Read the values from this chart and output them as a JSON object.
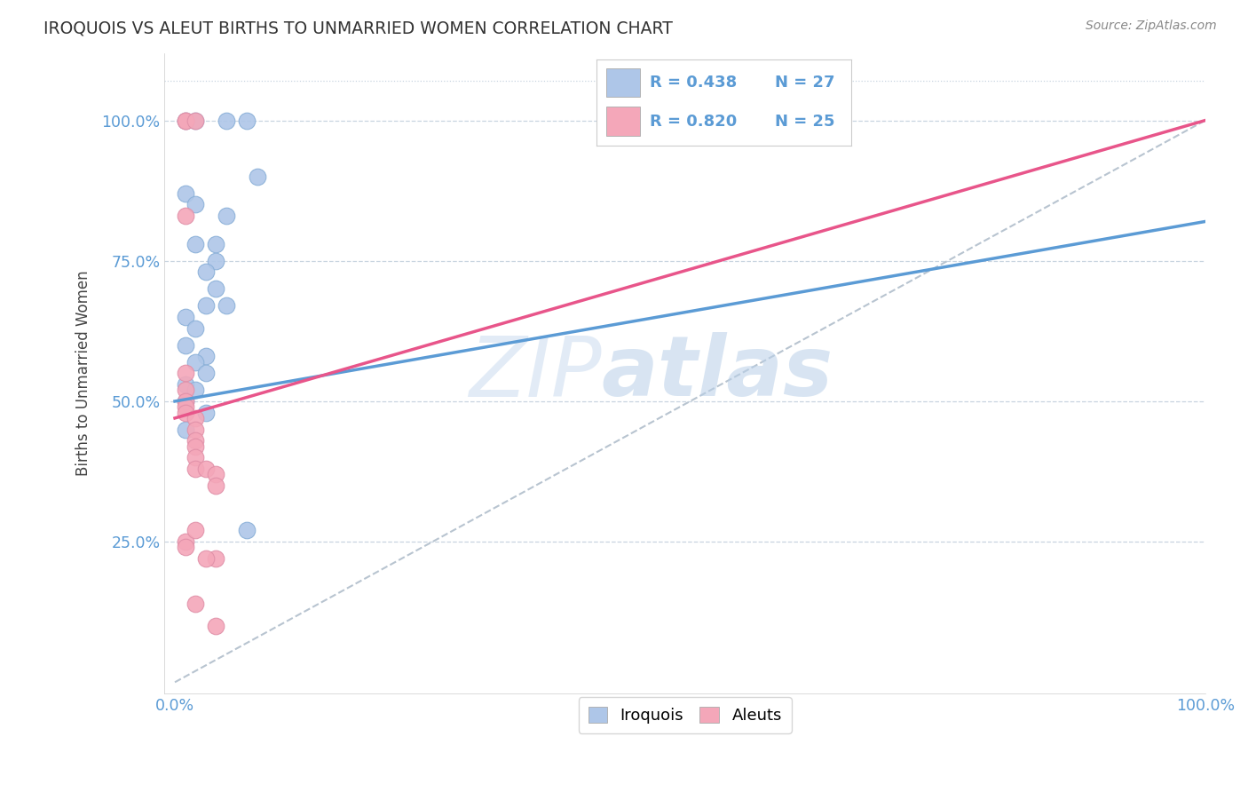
{
  "title": "IROQUOIS VS ALEUT BIRTHS TO UNMARRIED WOMEN CORRELATION CHART",
  "source": "Source: ZipAtlas.com",
  "ylabel": "Births to Unmarried Women",
  "iroquois_R": 0.438,
  "iroquois_N": 27,
  "aleut_R": 0.82,
  "aleut_N": 25,
  "iroquois_color": "#aec6e8",
  "aleut_color": "#f4a7b9",
  "iroquois_line_color": "#5b9bd5",
  "aleut_line_color": "#e8558a",
  "ref_line_color": "#b8c4d0",
  "background_color": "#ffffff",
  "grid_color": "#c8d4e0",
  "iroquois_scatter": [
    [
      0.01,
      1.0
    ],
    [
      0.02,
      1.0
    ],
    [
      0.05,
      1.0
    ],
    [
      0.07,
      1.0
    ],
    [
      0.08,
      0.9
    ],
    [
      0.01,
      0.87
    ],
    [
      0.02,
      0.85
    ],
    [
      0.05,
      0.83
    ],
    [
      0.02,
      0.78
    ],
    [
      0.04,
      0.78
    ],
    [
      0.04,
      0.75
    ],
    [
      0.03,
      0.73
    ],
    [
      0.04,
      0.7
    ],
    [
      0.03,
      0.67
    ],
    [
      0.05,
      0.67
    ],
    [
      0.01,
      0.65
    ],
    [
      0.02,
      0.63
    ],
    [
      0.01,
      0.6
    ],
    [
      0.03,
      0.58
    ],
    [
      0.02,
      0.57
    ],
    [
      0.03,
      0.55
    ],
    [
      0.01,
      0.53
    ],
    [
      0.02,
      0.52
    ],
    [
      0.01,
      0.5
    ],
    [
      0.03,
      0.48
    ],
    [
      0.01,
      0.45
    ],
    [
      0.07,
      0.27
    ]
  ],
  "aleut_scatter": [
    [
      0.01,
      1.0
    ],
    [
      0.01,
      1.0
    ],
    [
      0.02,
      1.0
    ],
    [
      0.01,
      0.83
    ],
    [
      0.01,
      0.55
    ],
    [
      0.01,
      0.52
    ],
    [
      0.01,
      0.5
    ],
    [
      0.01,
      0.49
    ],
    [
      0.01,
      0.48
    ],
    [
      0.02,
      0.47
    ],
    [
      0.02,
      0.45
    ],
    [
      0.02,
      0.43
    ],
    [
      0.02,
      0.42
    ],
    [
      0.02,
      0.4
    ],
    [
      0.02,
      0.38
    ],
    [
      0.03,
      0.38
    ],
    [
      0.04,
      0.37
    ],
    [
      0.04,
      0.35
    ],
    [
      0.04,
      0.22
    ],
    [
      0.03,
      0.22
    ],
    [
      0.02,
      0.14
    ],
    [
      0.04,
      0.1
    ],
    [
      0.01,
      0.25
    ],
    [
      0.01,
      0.24
    ],
    [
      0.02,
      0.27
    ]
  ],
  "iroquois_line": [
    [
      0.0,
      0.5
    ],
    [
      1.0,
      0.82
    ]
  ],
  "aleut_line": [
    [
      0.0,
      0.47
    ],
    [
      1.0,
      1.0
    ]
  ],
  "ref_line": [
    [
      0.0,
      0.0
    ],
    [
      1.0,
      1.0
    ]
  ],
  "xlim": [
    -0.01,
    1.0
  ],
  "ylim": [
    -0.02,
    1.12
  ],
  "watermark_zip": "ZIP",
  "watermark_atlas": "atlas",
  "watermark_color_zip": "#c8d8ee",
  "watermark_color_atlas": "#b0c4de",
  "legend_iroquois_label": "Iroquois",
  "legend_aleut_label": "Aleuts"
}
